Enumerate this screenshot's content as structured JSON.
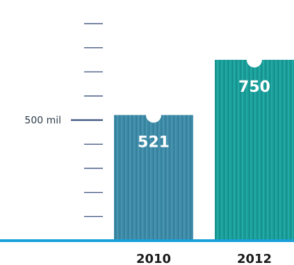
{
  "chart_data": {
    "type": "bar",
    "categories": [
      "2010",
      "2012"
    ],
    "values": [
      521,
      750
    ],
    "value_labels": [
      "521",
      "750"
    ],
    "ylim": [
      0,
      900
    ],
    "ytick_step": 100,
    "labeled_tick": {
      "value": 500,
      "label": "500 mil"
    },
    "title": "",
    "xlabel": "",
    "ylabel": "",
    "grid": false,
    "legend": "none",
    "colors": {
      "bars": [
        "#3b8aa6",
        "#1a9c98"
      ],
      "bar_stripe": [
        "#4a94b0",
        "#22aaa5"
      ],
      "tick": "#233a6e",
      "baseline": "#1aa0d8"
    }
  }
}
